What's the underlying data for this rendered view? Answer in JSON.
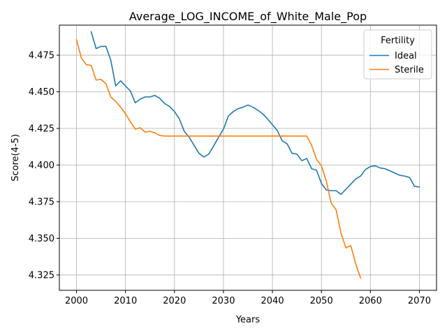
{
  "chart_data": {
    "type": "line",
    "title": "Average_LOG_INCOME_of_White_Male_Pop",
    "xlabel": "Years",
    "ylabel": "Score(4-5)",
    "xlim": [
      1996.5,
      2073.5
    ],
    "ylim": [
      4.3145,
      4.4955
    ],
    "xticks": [
      2000,
      2010,
      2020,
      2030,
      2040,
      2050,
      2060,
      2070
    ],
    "yticks": [
      4.325,
      4.35,
      4.375,
      4.4,
      4.425,
      4.45,
      4.475
    ],
    "ytick_labels": [
      "4.325",
      "4.350",
      "4.375",
      "4.400",
      "4.425",
      "4.450",
      "4.475"
    ],
    "xtick_labels": [
      "2000",
      "2010",
      "2020",
      "2030",
      "2040",
      "2050",
      "2060",
      "2070"
    ],
    "grid": true,
    "legend": {
      "title": "Fertility",
      "placement": "top-right"
    },
    "series": [
      {
        "name": "Ideal",
        "color": "#1f77b4",
        "x": [
          2003,
          2004,
          2005,
          2006,
          2007,
          2008,
          2009,
          2010,
          2011,
          2012,
          2013,
          2014,
          2015,
          2016,
          2017,
          2018,
          2019,
          2020,
          2021,
          2022,
          2023,
          2024,
          2025,
          2026,
          2027,
          2028,
          2029,
          2030,
          2031,
          2032,
          2033,
          2034,
          2035,
          2036,
          2037,
          2038,
          2039,
          2040,
          2041,
          2042,
          2043,
          2044,
          2045,
          2046,
          2047,
          2048,
          2049,
          2050,
          2051,
          2052,
          2053,
          2054,
          2055,
          2056,
          2057,
          2058,
          2059,
          2060,
          2061,
          2062,
          2063,
          2064,
          2065,
          2066,
          2067,
          2068,
          2069,
          2070
        ],
        "y": [
          4.491,
          4.4795,
          4.481,
          4.481,
          4.4715,
          4.454,
          4.4575,
          4.454,
          4.4505,
          4.4425,
          4.445,
          4.4465,
          4.4465,
          4.4475,
          4.4455,
          4.442,
          4.44,
          4.4365,
          4.4315,
          4.423,
          4.419,
          4.4135,
          4.408,
          4.4055,
          4.4075,
          4.413,
          4.419,
          4.4245,
          4.4335,
          4.4365,
          4.4385,
          4.4395,
          4.441,
          4.4395,
          4.4375,
          4.435,
          4.4315,
          4.4275,
          4.4235,
          4.4165,
          4.4145,
          4.408,
          4.4075,
          4.403,
          4.4045,
          4.3975,
          4.3965,
          4.3875,
          4.383,
          4.3825,
          4.3825,
          4.38,
          4.3835,
          4.387,
          4.3905,
          4.3925,
          4.397,
          4.399,
          4.3995,
          4.398,
          4.3975,
          4.396,
          4.3945,
          4.393,
          4.3925,
          4.3915,
          4.3855,
          4.385
        ]
      },
      {
        "name": "Sterile",
        "color": "#ff7f0e",
        "x": [
          2000,
          2001,
          2002,
          2003,
          2004,
          2005,
          2006,
          2007,
          2008,
          2009,
          2010,
          2011,
          2012,
          2013,
          2014,
          2015,
          2016,
          2017,
          2018,
          2019,
          2020,
          2021,
          2022,
          2023,
          2024,
          2025,
          2026,
          2027,
          2028,
          2029,
          2030,
          2031,
          2032,
          2033,
          2034,
          2035,
          2036,
          2037,
          2038,
          2039,
          2040,
          2041,
          2042,
          2043,
          2044,
          2045,
          2046,
          2047,
          2048,
          2049,
          2050,
          2051,
          2052,
          2053,
          2054,
          2055,
          2056,
          2057,
          2058
        ],
        "y": [
          4.4855,
          4.473,
          4.4685,
          4.468,
          4.458,
          4.4585,
          4.4555,
          4.4465,
          4.4435,
          4.4395,
          4.435,
          4.4295,
          4.4245,
          4.4255,
          4.4225,
          4.423,
          4.422,
          4.4202,
          4.4198,
          4.4198,
          4.4198,
          4.4198,
          4.4198,
          4.4198,
          4.4198,
          4.4198,
          4.4198,
          4.4198,
          4.4198,
          4.4198,
          4.4198,
          4.4198,
          4.4198,
          4.4198,
          4.4198,
          4.4198,
          4.4198,
          4.4198,
          4.4198,
          4.4198,
          4.4198,
          4.4198,
          4.4198,
          4.4198,
          4.4198,
          4.4198,
          4.4198,
          4.4198,
          4.4135,
          4.404,
          4.3995,
          4.389,
          4.374,
          4.3695,
          4.3535,
          4.3435,
          4.345,
          4.3325,
          4.323
        ]
      }
    ]
  }
}
